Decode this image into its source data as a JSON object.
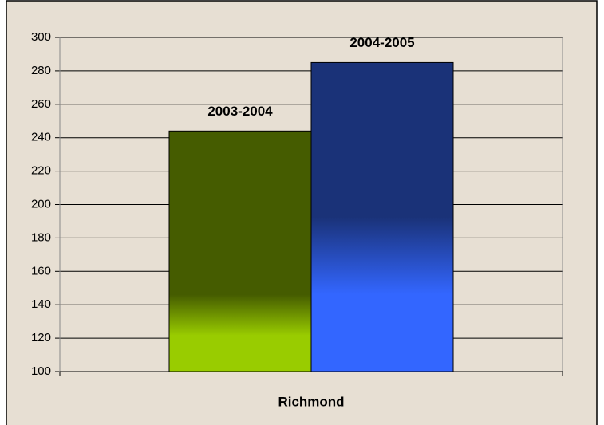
{
  "chart_data": {
    "type": "bar",
    "categories": [
      "Richmond"
    ],
    "series": [
      {
        "name": "2003-2004",
        "color": "#455c00",
        "color_bottom": "#99cc00",
        "values": [
          244
        ]
      },
      {
        "name": "2004-2005",
        "color": "#1a3278",
        "color_bottom": "#3366ff",
        "values": [
          285
        ]
      }
    ],
    "ylim": [
      100,
      300
    ],
    "yticks": [
      100,
      120,
      140,
      160,
      180,
      200,
      220,
      240,
      260,
      280,
      300
    ],
    "grid": true
  }
}
